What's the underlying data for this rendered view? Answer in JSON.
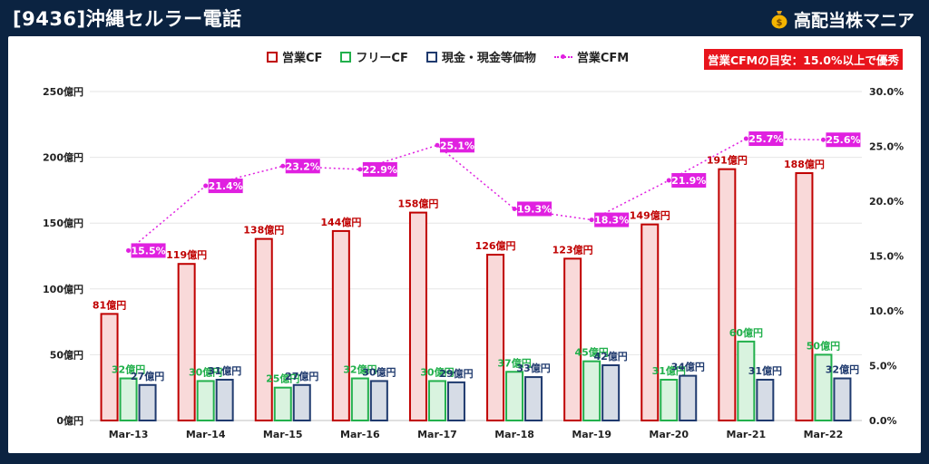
{
  "header": {
    "title": "[9436]沖縄セルラー電話",
    "brand": "高配当株マニア"
  },
  "legend_note": "営業CFMの目安：15.0%以上で優秀",
  "colors": {
    "op_cf_border": "#c00000",
    "op_cf_fill": "#f9d9d9",
    "free_cf_border": "#22b04c",
    "free_cf_fill": "#d9f3df",
    "cash_border": "#1f3a6e",
    "cash_fill": "#d6dce6",
    "cfm_line": "#e020e0",
    "op_cf_label": "#c00000",
    "free_cf_label": "#22b04c",
    "cash_label": "#1f3a6e"
  },
  "chart_data": {
    "type": "bar",
    "categories": [
      "Mar-13",
      "Mar-14",
      "Mar-15",
      "Mar-16",
      "Mar-17",
      "Mar-18",
      "Mar-19",
      "Mar-20",
      "Mar-21",
      "Mar-22"
    ],
    "series": [
      {
        "name": "営業CF",
        "values": [
          81,
          119,
          138,
          144,
          158,
          126,
          123,
          149,
          191,
          188
        ],
        "labels": [
          "81億円",
          "119億円",
          "138億円",
          "144億円",
          "158億円",
          "126億円",
          "123億円",
          "149億円",
          "191億円",
          "188億円"
        ]
      },
      {
        "name": "フリーCF",
        "values": [
          32,
          30,
          25,
          32,
          30,
          37,
          45,
          31,
          60,
          50
        ],
        "labels": [
          "32億円",
          "30億円",
          "25億円",
          "32億円",
          "30億円",
          "37億円",
          "45億円",
          "31億円",
          "60億円",
          "50億円"
        ]
      },
      {
        "name": "現金・現金等価物",
        "values": [
          27,
          31,
          27,
          30,
          29,
          33,
          42,
          34,
          31,
          32
        ],
        "labels": [
          "27億円",
          "31億円",
          "27億円",
          "30億円",
          "29億円",
          "33億円",
          "42億円",
          "34億円",
          "31億円",
          "32億円"
        ]
      },
      {
        "name": "営業CFM",
        "type": "line",
        "axis": "right",
        "values": [
          15.5,
          21.4,
          23.2,
          22.9,
          25.1,
          19.3,
          18.3,
          21.9,
          25.7,
          25.6
        ],
        "labels": [
          "15.5%",
          "21.4%",
          "23.2%",
          "22.9%",
          "25.1%",
          "19.3%",
          "18.3%",
          "21.9%",
          "25.7%",
          "25.6%"
        ]
      }
    ],
    "y_left": {
      "lim": [
        0,
        250
      ],
      "ticks": [
        "0億円",
        "50億円",
        "100億円",
        "150億円",
        "200億円",
        "250億円"
      ]
    },
    "y_right": {
      "lim": [
        0,
        30
      ],
      "ticks": [
        "0.0%",
        "5.0%",
        "10.0%",
        "15.0%",
        "20.0%",
        "25.0%",
        "30.0%"
      ]
    },
    "grid": true,
    "legend_position": "top"
  }
}
